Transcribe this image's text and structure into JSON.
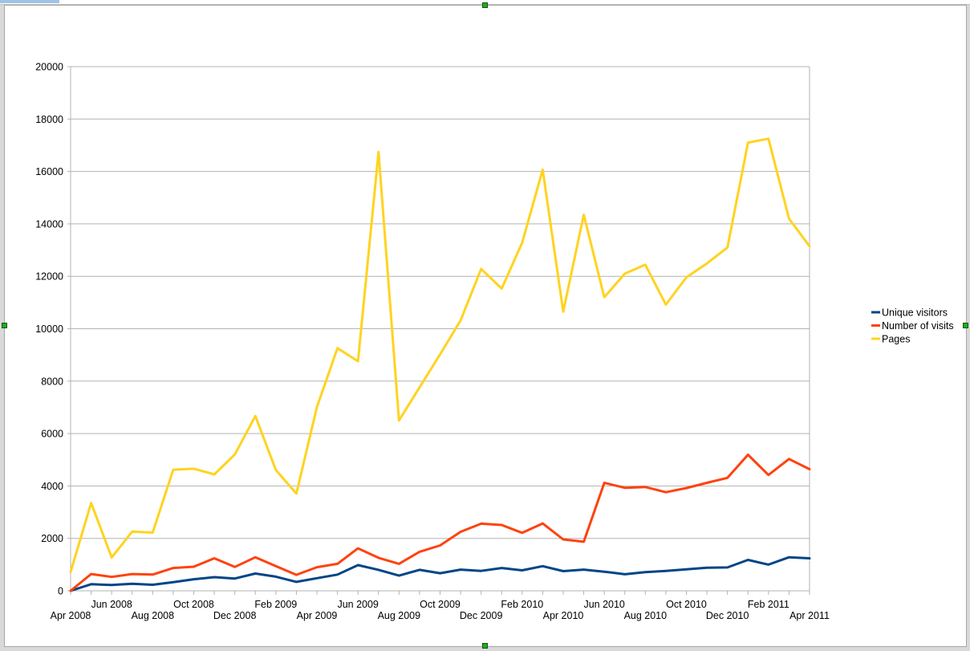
{
  "chart_data": {
    "type": "line",
    "title": "",
    "xlabel": "",
    "ylabel": "",
    "ylim": [
      0,
      20000
    ],
    "y_ticks": [
      0,
      2000,
      4000,
      6000,
      8000,
      10000,
      12000,
      14000,
      16000,
      18000,
      20000
    ],
    "x": [
      "Apr 2008",
      "May 2008",
      "Jun 2008",
      "Jul 2008",
      "Aug 2008",
      "Sep 2008",
      "Oct 2008",
      "Nov 2008",
      "Dec 2008",
      "Jan 2009",
      "Feb 2009",
      "Mar 2009",
      "Apr 2009",
      "May 2009",
      "Jun 2009",
      "Jul 2009",
      "Aug 2009",
      "Sep 2009",
      "Oct 2009",
      "Nov 2009",
      "Dec 2009",
      "Jan 2010",
      "Feb 2010",
      "Mar 2010",
      "Apr 2010",
      "May 2010",
      "Jun 2010",
      "Jul 2010",
      "Aug 2010",
      "Sep 2010",
      "Oct 2010",
      "Nov 2010",
      "Dec 2010",
      "Jan 2011",
      "Feb 2011",
      "Mar 2011",
      "Apr 2011"
    ],
    "x_tick_labels": [
      {
        "label": "Apr 2008",
        "row": 2
      },
      {
        "label": "Jun 2008",
        "row": 1
      },
      {
        "label": "Aug 2008",
        "row": 2
      },
      {
        "label": "Oct 2008",
        "row": 1
      },
      {
        "label": "Dec 2008",
        "row": 2
      },
      {
        "label": "Feb 2009",
        "row": 1
      },
      {
        "label": "Apr 2009",
        "row": 2
      },
      {
        "label": "Jun 2009",
        "row": 1
      },
      {
        "label": "Aug 2009",
        "row": 2
      },
      {
        "label": "Oct 2009",
        "row": 1
      },
      {
        "label": "Dec 2009",
        "row": 2
      },
      {
        "label": "Feb 2010",
        "row": 1
      },
      {
        "label": "Apr 2010",
        "row": 2
      },
      {
        "label": "Jun 2010",
        "row": 1
      },
      {
        "label": "Aug 2010",
        "row": 2
      },
      {
        "label": "Oct 2010",
        "row": 1
      },
      {
        "label": "Dec 2010",
        "row": 2
      },
      {
        "label": "Feb 2011",
        "row": 1
      },
      {
        "label": "Apr 2011",
        "row": 2
      }
    ],
    "grid": true,
    "legend_position": "right",
    "series": [
      {
        "name": "Unique visitors",
        "color": "#004586",
        "values": [
          0,
          250,
          220,
          270,
          230,
          330,
          440,
          520,
          470,
          660,
          540,
          340,
          480,
          620,
          980,
          800,
          580,
          800,
          670,
          810,
          760,
          870,
          780,
          940,
          750,
          810,
          730,
          630,
          710,
          760,
          820,
          880,
          890,
          1180,
          1000,
          1280,
          1240
        ]
      },
      {
        "name": "Number of visits",
        "color": "#ff420e",
        "values": [
          0,
          640,
          530,
          640,
          620,
          870,
          920,
          1240,
          910,
          1280,
          940,
          610,
          900,
          1030,
          1620,
          1260,
          1030,
          1490,
          1730,
          2250,
          2560,
          2510,
          2210,
          2570,
          1960,
          1870,
          4120,
          3930,
          3960,
          3760,
          3920,
          4120,
          4310,
          5190,
          4420,
          5030,
          4640
        ]
      },
      {
        "name": "Pages",
        "color": "#ffd320",
        "values": [
          720,
          3350,
          1270,
          2260,
          2220,
          4620,
          4660,
          4440,
          5200,
          6670,
          4610,
          3710,
          7010,
          9260,
          8760,
          16740,
          6500,
          7760,
          9020,
          10320,
          12280,
          11530,
          13280,
          16070,
          10650,
          14350,
          11200,
          12100,
          12440,
          10920,
          11960,
          12490,
          13100,
          17100,
          17250,
          14200,
          13150
        ]
      }
    ]
  }
}
